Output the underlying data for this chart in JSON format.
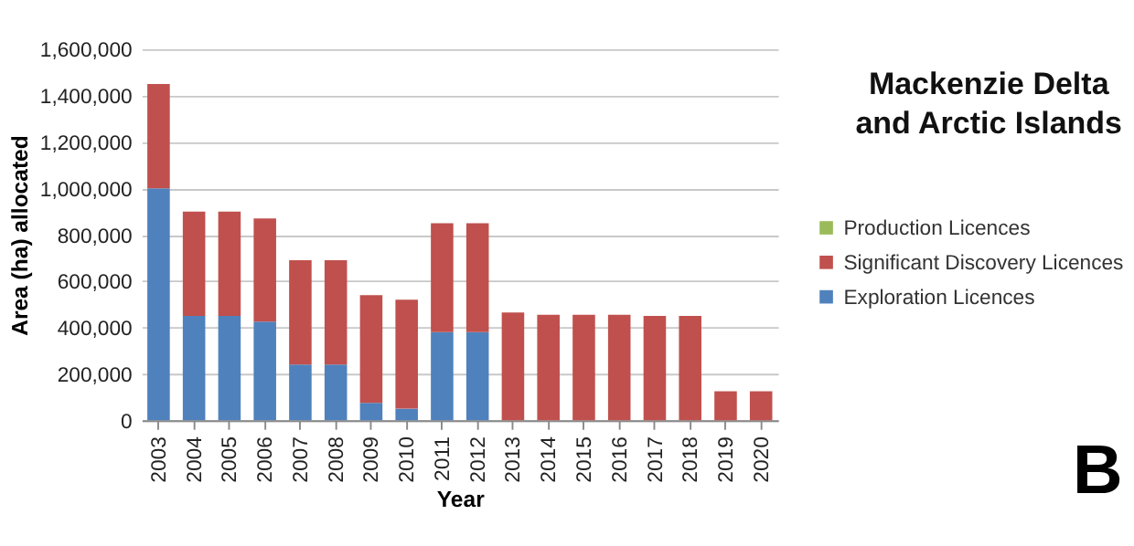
{
  "chart_data": {
    "type": "bar",
    "stacked": true,
    "title": "Mackenzie Delta and Arctic Islands",
    "xlabel": "Year",
    "ylabel": "Area (ha) allocated",
    "categories": [
      "2003",
      "2004",
      "2005",
      "2006",
      "2007",
      "2008",
      "2009",
      "2010",
      "2011",
      "2012",
      "2013",
      "2014",
      "2015",
      "2016",
      "2017",
      "2018",
      "2019",
      "2020"
    ],
    "series": [
      {
        "name": "Exploration Licences",
        "color": "#4f81bd",
        "values": [
          1000000,
          450000,
          450000,
          425000,
          240000,
          240000,
          75000,
          50000,
          380000,
          380000,
          0,
          0,
          0,
          0,
          0,
          0,
          0,
          0
        ]
      },
      {
        "name": "Significant Discovery Licences",
        "color": "#c0504d",
        "values": [
          450000,
          450000,
          450000,
          445000,
          450000,
          450000,
          465000,
          470000,
          470000,
          470000,
          465000,
          455000,
          455000,
          455000,
          450000,
          450000,
          125000,
          125000
        ]
      },
      {
        "name": "Production Licences",
        "color": "#9bbb59",
        "values": [
          0,
          0,
          0,
          0,
          0,
          0,
          0,
          0,
          0,
          0,
          0,
          0,
          0,
          0,
          0,
          0,
          0,
          0
        ]
      }
    ],
    "ylim": [
      0,
      1600000
    ],
    "yticks": [
      0,
      {
        "value": 200000,
        "label": "200,000"
      },
      {
        "value": 400000,
        "label": "400,000"
      },
      {
        "value": 600000,
        "label": "600,000"
      },
      {
        "value": 800000,
        "label": "800,000"
      },
      {
        "value": 1000000,
        "label": "1,000,000"
      },
      {
        "value": 1200000,
        "label": "1,200,000"
      },
      {
        "value": 1400000,
        "label": "1,400,000"
      },
      {
        "value": 1600000,
        "label": "1,600,000"
      }
    ],
    "grid": "y",
    "legend": "right",
    "annotations": [
      "B"
    ]
  }
}
